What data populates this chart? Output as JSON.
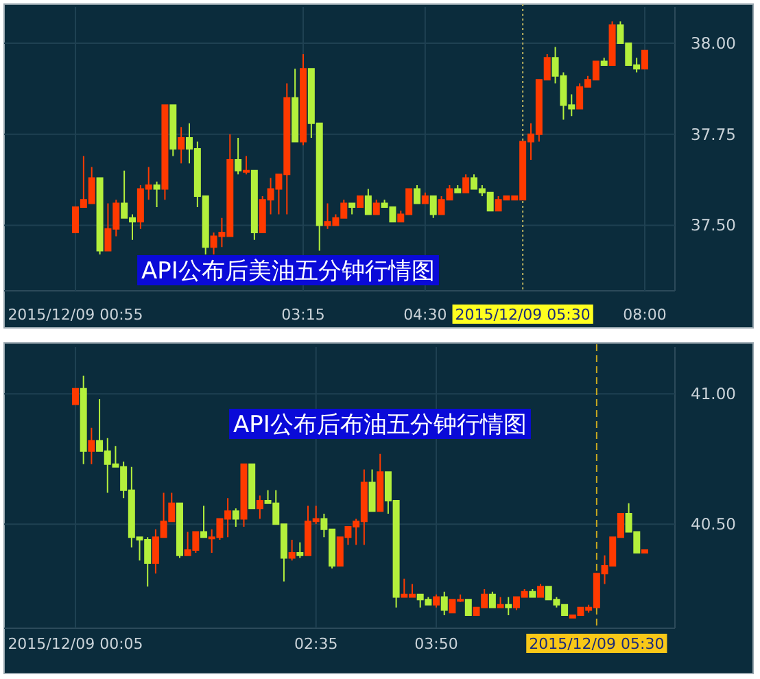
{
  "chart_data": [
    {
      "type": "candlestick",
      "title": "API公布后美油五分钟行情图",
      "grid": true,
      "categories": [
        "2015/12/09 00:55",
        null,
        null,
        null,
        null,
        null,
        null,
        null,
        null,
        null,
        null,
        null,
        null,
        null,
        null,
        null,
        null,
        null,
        null,
        null,
        null,
        null,
        null,
        null,
        null,
        null,
        null,
        null,
        "03:15",
        null,
        null,
        null,
        null,
        null,
        null,
        null,
        null,
        null,
        null,
        null,
        null,
        null,
        null,
        "04:30",
        null,
        null,
        null,
        null,
        null,
        null,
        null,
        null,
        null,
        null,
        null,
        "2015/12/09 05:30",
        null,
        null,
        null,
        null,
        null,
        null,
        null,
        null,
        null,
        null,
        null,
        null,
        null,
        null,
        "08:00"
      ],
      "ohlc": [
        [
          37.48,
          37.55,
          37.48,
          37.55
        ],
        [
          37.55,
          37.69,
          37.55,
          37.57
        ],
        [
          37.56,
          37.66,
          37.56,
          37.63
        ],
        [
          37.63,
          37.63,
          37.42,
          37.43
        ],
        [
          37.43,
          37.56,
          37.43,
          37.49
        ],
        [
          37.49,
          37.57,
          37.47,
          37.56
        ],
        [
          37.56,
          37.65,
          37.52,
          37.52
        ],
        [
          37.52,
          37.53,
          37.46,
          37.51
        ],
        [
          37.51,
          37.61,
          37.49,
          37.6
        ],
        [
          37.6,
          37.66,
          37.57,
          37.61
        ],
        [
          37.61,
          37.62,
          37.55,
          37.6
        ],
        [
          37.6,
          37.83,
          37.57,
          37.83
        ],
        [
          37.83,
          37.83,
          37.69,
          37.71
        ],
        [
          37.71,
          37.77,
          37.67,
          37.74
        ],
        [
          37.74,
          37.78,
          37.67,
          37.71
        ],
        [
          37.71,
          37.73,
          37.55,
          37.58
        ],
        [
          37.58,
          37.58,
          37.42,
          37.44
        ],
        [
          37.44,
          37.48,
          37.42,
          37.47
        ],
        [
          37.47,
          37.52,
          37.44,
          37.48
        ],
        [
          37.47,
          37.75,
          37.47,
          37.68
        ],
        [
          37.68,
          37.74,
          37.64,
          37.65
        ],
        [
          37.65,
          37.69,
          37.64,
          37.65
        ],
        [
          37.65,
          37.65,
          37.46,
          37.48
        ],
        [
          37.48,
          37.58,
          37.48,
          37.57
        ],
        [
          37.57,
          37.63,
          37.53,
          37.6
        ],
        [
          37.6,
          37.64,
          37.53,
          37.64
        ],
        [
          37.64,
          37.89,
          37.53,
          37.85
        ],
        [
          37.85,
          37.93,
          37.73,
          37.73
        ],
        [
          37.73,
          37.97,
          37.72,
          37.93
        ],
        [
          37.93,
          37.93,
          37.74,
          37.78
        ],
        [
          37.78,
          37.78,
          37.43,
          37.5
        ],
        [
          37.5,
          37.56,
          37.49,
          37.51
        ],
        [
          37.5,
          37.53,
          37.5,
          37.52
        ],
        [
          37.52,
          37.57,
          37.52,
          37.56
        ],
        [
          37.56,
          37.56,
          37.53,
          37.55
        ],
        [
          37.55,
          37.58,
          37.55,
          37.58
        ],
        [
          37.58,
          37.6,
          37.53,
          37.53
        ],
        [
          37.53,
          37.57,
          37.53,
          37.56
        ],
        [
          37.56,
          37.57,
          37.55,
          37.55
        ],
        [
          37.55,
          37.55,
          37.51,
          37.51
        ],
        [
          37.51,
          37.54,
          37.51,
          37.53
        ],
        [
          37.53,
          37.6,
          37.53,
          37.6
        ],
        [
          37.6,
          37.61,
          37.56,
          37.56
        ],
        [
          37.56,
          37.59,
          37.56,
          37.58
        ],
        [
          37.58,
          37.58,
          37.52,
          37.53
        ],
        [
          37.53,
          37.58,
          37.53,
          37.57
        ],
        [
          37.57,
          37.61,
          37.57,
          37.6
        ],
        [
          37.6,
          37.61,
          37.59,
          37.59
        ],
        [
          37.59,
          37.64,
          37.59,
          37.63
        ],
        [
          37.63,
          37.64,
          37.6,
          37.6
        ],
        [
          37.6,
          37.61,
          37.58,
          37.59
        ],
        [
          37.59,
          37.59,
          37.54,
          37.54
        ],
        [
          37.54,
          37.58,
          37.54,
          37.57
        ],
        [
          37.57,
          37.58,
          37.57,
          37.58
        ],
        [
          37.57,
          37.58,
          37.57,
          37.58
        ],
        [
          37.57,
          37.73,
          37.57,
          37.73
        ],
        [
          37.73,
          37.78,
          37.68,
          37.75
        ],
        [
          37.75,
          37.9,
          37.73,
          37.9
        ],
        [
          37.9,
          37.97,
          37.9,
          37.96
        ],
        [
          37.96,
          37.99,
          37.89,
          37.91
        ],
        [
          37.91,
          37.92,
          37.79,
          37.83
        ],
        [
          37.83,
          37.86,
          37.8,
          37.82
        ],
        [
          37.82,
          37.89,
          37.82,
          37.88
        ],
        [
          37.88,
          37.91,
          37.88,
          37.9
        ],
        [
          37.9,
          37.95,
          37.9,
          37.95
        ],
        [
          37.95,
          37.96,
          37.94,
          37.94
        ],
        [
          37.94,
          38.06,
          37.94,
          38.05
        ],
        [
          38.05,
          38.06,
          38.0,
          38.0
        ],
        [
          38.0,
          38.0,
          37.94,
          37.94
        ],
        [
          37.94,
          37.96,
          37.92,
          37.93
        ],
        [
          37.93,
          37.98,
          37.93,
          37.98
        ]
      ],
      "ylim": [
        37.32,
        38.1
      ],
      "yticks": [
        {
          "value": 37.5,
          "label": "37.50"
        },
        {
          "value": 37.75,
          "label": "37.75"
        },
        {
          "value": 38,
          "label": "38.00"
        }
      ],
      "ref_lines": [
        {
          "axis": "x",
          "value": "2015/12/09 05:30",
          "color": "#b8b060",
          "line_style": "dotted"
        }
      ]
    },
    {
      "type": "candlestick",
      "title": "API公布后布油五分钟行情图",
      "grid": true,
      "categories": [
        "2015/12/09 00:05",
        null,
        null,
        null,
        null,
        null,
        null,
        null,
        null,
        null,
        null,
        null,
        null,
        null,
        null,
        null,
        null,
        null,
        null,
        null,
        null,
        null,
        null,
        null,
        null,
        null,
        null,
        null,
        null,
        null,
        "02:35",
        null,
        null,
        null,
        null,
        null,
        null,
        null,
        null,
        null,
        null,
        null,
        null,
        null,
        null,
        "03:50",
        null,
        null,
        null,
        null,
        null,
        null,
        null,
        null,
        null,
        null,
        null,
        null,
        null,
        null,
        null,
        null,
        null,
        null,
        null,
        "2015/12/09 05:30",
        null,
        null,
        null,
        null,
        null,
        null
      ],
      "ohlc": [
        [
          40.96,
          41.02,
          40.96,
          41.02
        ],
        [
          41.02,
          41.07,
          40.73,
          40.78
        ],
        [
          40.78,
          40.87,
          40.73,
          40.82
        ],
        [
          40.82,
          40.98,
          40.78,
          40.78
        ],
        [
          40.78,
          40.83,
          40.62,
          40.73
        ],
        [
          40.73,
          40.8,
          40.72,
          40.72
        ],
        [
          40.72,
          40.74,
          40.6,
          40.63
        ],
        [
          40.63,
          40.72,
          40.41,
          40.45
        ],
        [
          40.45,
          40.45,
          40.36,
          40.44
        ],
        [
          40.44,
          40.45,
          40.26,
          40.35
        ],
        [
          40.35,
          40.48,
          40.31,
          40.45
        ],
        [
          40.45,
          40.62,
          40.45,
          40.51
        ],
        [
          40.51,
          40.62,
          40.51,
          40.58
        ],
        [
          40.58,
          40.58,
          40.37,
          40.38
        ],
        [
          40.38,
          40.47,
          40.38,
          40.4
        ],
        [
          40.4,
          40.47,
          40.39,
          40.47
        ],
        [
          40.47,
          40.57,
          40.45,
          40.45
        ],
        [
          40.45,
          40.48,
          40.39,
          40.45
        ],
        [
          40.45,
          40.52,
          40.44,
          40.52
        ],
        [
          40.52,
          40.6,
          40.45,
          40.55
        ],
        [
          40.55,
          40.56,
          40.49,
          40.52
        ],
        [
          40.52,
          40.73,
          40.49,
          40.73
        ],
        [
          40.73,
          40.73,
          40.56,
          40.56
        ],
        [
          40.56,
          40.61,
          40.52,
          40.59
        ],
        [
          40.59,
          40.63,
          40.58,
          40.58
        ],
        [
          40.58,
          40.63,
          40.5,
          40.5
        ],
        [
          40.5,
          40.5,
          40.28,
          40.37
        ],
        [
          40.37,
          40.44,
          40.36,
          40.39
        ],
        [
          40.39,
          40.43,
          40.37,
          40.38
        ],
        [
          40.38,
          40.57,
          40.38,
          40.51
        ],
        [
          40.51,
          40.57,
          40.5,
          40.52
        ],
        [
          40.52,
          40.54,
          40.45,
          40.48
        ],
        [
          40.48,
          40.48,
          40.33,
          40.34
        ],
        [
          40.34,
          40.45,
          40.34,
          40.45
        ],
        [
          40.45,
          40.49,
          40.42,
          40.49
        ],
        [
          40.49,
          40.52,
          40.42,
          40.51
        ],
        [
          40.51,
          40.71,
          40.42,
          40.66
        ],
        [
          40.66,
          40.71,
          40.55,
          40.55
        ],
        [
          40.55,
          40.77,
          40.55,
          40.7
        ],
        [
          40.7,
          40.7,
          40.54,
          40.59
        ],
        [
          40.59,
          40.59,
          40.18,
          40.22
        ],
        [
          40.22,
          40.29,
          40.22,
          40.23
        ],
        [
          40.22,
          40.27,
          40.22,
          40.23
        ],
        [
          40.23,
          40.23,
          40.18,
          40.21
        ],
        [
          40.21,
          40.22,
          40.19,
          40.19
        ],
        [
          40.19,
          40.23,
          40.18,
          40.22
        ],
        [
          40.22,
          40.24,
          40.15,
          40.17
        ],
        [
          40.16,
          40.21,
          40.16,
          40.21
        ],
        [
          40.21,
          40.23,
          40.2,
          40.21
        ],
        [
          40.21,
          40.21,
          40.15,
          40.15
        ],
        [
          40.15,
          40.18,
          40.15,
          40.18
        ],
        [
          40.18,
          40.25,
          40.18,
          40.23
        ],
        [
          40.23,
          40.24,
          40.18,
          40.18
        ],
        [
          40.18,
          40.22,
          40.18,
          40.19
        ],
        [
          40.19,
          40.22,
          40.15,
          40.18
        ],
        [
          40.18,
          40.22,
          40.17,
          40.22
        ],
        [
          40.22,
          40.25,
          40.22,
          40.24
        ],
        [
          40.24,
          40.25,
          40.22,
          40.22
        ],
        [
          40.22,
          40.27,
          40.22,
          40.26
        ],
        [
          40.26,
          40.26,
          40.21,
          40.21
        ],
        [
          40.21,
          40.22,
          40.18,
          40.19
        ],
        [
          40.19,
          40.19,
          40.15,
          40.15
        ],
        [
          40.14,
          40.15,
          40.14,
          40.15
        ],
        [
          40.15,
          40.18,
          40.15,
          40.18
        ],
        [
          40.17,
          40.19,
          40.16,
          40.18
        ],
        [
          40.18,
          40.31,
          40.18,
          40.31
        ],
        [
          40.31,
          40.38,
          40.27,
          40.34
        ],
        [
          40.34,
          40.45,
          40.34,
          40.45
        ],
        [
          40.45,
          40.54,
          40.45,
          40.54
        ],
        [
          40.54,
          40.58,
          40.47,
          40.47
        ],
        [
          40.47,
          40.47,
          40.39,
          40.39
        ],
        [
          40.39,
          40.4,
          40.39,
          40.4
        ]
      ],
      "ylim": [
        40.1,
        41.18
      ],
      "yticks": [
        {
          "value": 40.5,
          "label": "40.50"
        },
        {
          "value": 41,
          "label": "41.00"
        }
      ],
      "ref_lines": [
        {
          "axis": "x",
          "value": "2015/12/09 05:30",
          "color": "#c8a820",
          "line_style": "dashed"
        }
      ]
    }
  ]
}
